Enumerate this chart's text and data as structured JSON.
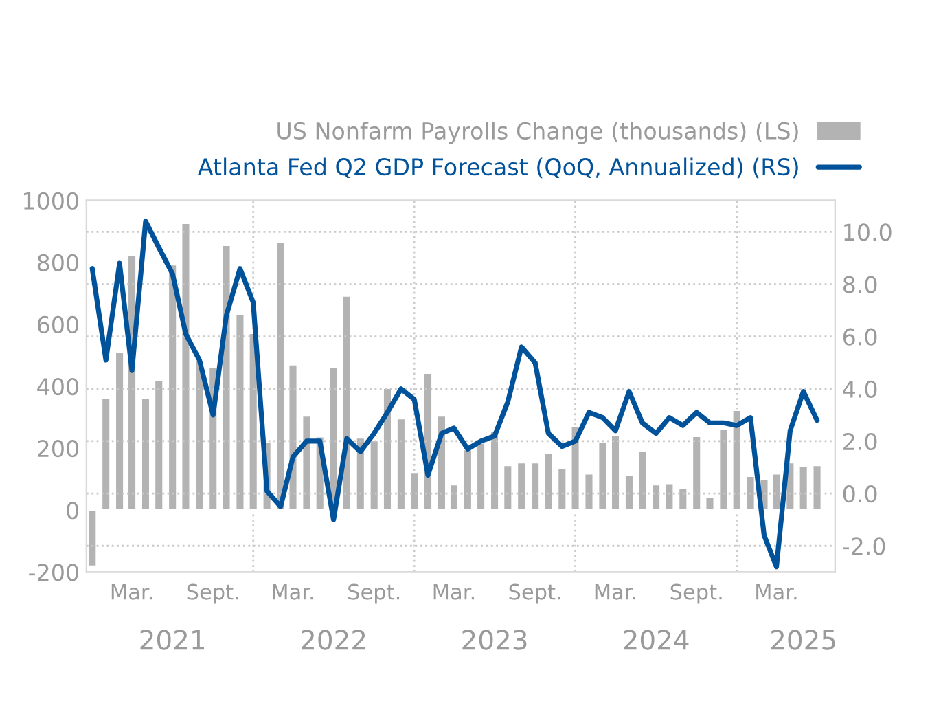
{
  "chart_data": {
    "type": "bar",
    "x": [
      "2020-12",
      "2021-01",
      "2021-02",
      "2021-03",
      "2021-04",
      "2021-05",
      "2021-06",
      "2021-07",
      "2021-08",
      "2021-09",
      "2021-10",
      "2021-11",
      "2021-12",
      "2022-01",
      "2022-02",
      "2022-03",
      "2022-04",
      "2022-05",
      "2022-06",
      "2022-07",
      "2022-08",
      "2022-09",
      "2022-10",
      "2022-11",
      "2022-12",
      "2023-01",
      "2023-02",
      "2023-03",
      "2023-04",
      "2023-05",
      "2023-06",
      "2023-07",
      "2023-08",
      "2023-09",
      "2023-10",
      "2023-11",
      "2023-12",
      "2024-01",
      "2024-02",
      "2024-03",
      "2024-04",
      "2024-05",
      "2024-06",
      "2024-07",
      "2024-08",
      "2024-09",
      "2024-10",
      "2024-11",
      "2024-12",
      "2025-01",
      "2025-02",
      "2025-03",
      "2025-04",
      "2025-05",
      "2025-06"
    ],
    "series": [
      {
        "name": "US Nonfarm Payrolls Change (thousands) (LS)",
        "color": "#b3b3b3",
        "values": [
          -182,
          363,
          510,
          825,
          363,
          421,
          793,
          927,
          484,
          461,
          856,
          634,
          572,
          221,
          865,
          470,
          305,
          238,
          461,
          692,
          234,
          225,
          394,
          296,
          123,
          443,
          305,
          83,
          196,
          218,
          256,
          145,
          154,
          154,
          185,
          136,
          270,
          118,
          221,
          243,
          114,
          190,
          83,
          87,
          70,
          239,
          43,
          261,
          323,
          110,
          101,
          118,
          154,
          141,
          145
        ]
      },
      {
        "name": "Atlanta Fed Q2 GDP Forecast (QoQ, Annualized) (RS)",
        "type": "line",
        "axis": "y2",
        "color": "#00529b",
        "values": [
          8.6,
          5.1,
          8.8,
          4.7,
          10.4,
          9.4,
          8.4,
          6.1,
          5.1,
          3.0,
          6.8,
          8.6,
          7.3,
          0.1,
          -0.5,
          1.4,
          2.0,
          2.0,
          -1.0,
          2.1,
          1.6,
          2.3,
          3.1,
          4.0,
          3.6,
          0.7,
          2.3,
          2.5,
          1.7,
          2.0,
          2.2,
          3.5,
          5.6,
          5.0,
          2.3,
          1.8,
          2.0,
          3.1,
          2.9,
          2.4,
          3.9,
          2.7,
          2.3,
          2.9,
          2.6,
          3.1,
          2.7,
          2.7,
          2.6,
          2.9,
          -1.6,
          -2.8,
          2.4,
          3.9,
          2.8
        ]
      }
    ],
    "xlim": [
      "2020-11-18",
      "2025-07-12"
    ],
    "xticks": [
      {
        "value": "2021-03",
        "label": "Mar."
      },
      {
        "value": "2021-09",
        "label": "Sept."
      },
      {
        "value": "2022-03",
        "label": "Mar."
      },
      {
        "value": "2022-09",
        "label": "Sept."
      },
      {
        "value": "2023-03",
        "label": "Mar."
      },
      {
        "value": "2023-09",
        "label": "Sept."
      },
      {
        "value": "2024-03",
        "label": "Mar."
      },
      {
        "value": "2024-09",
        "label": "Sept."
      },
      {
        "value": "2025-03",
        "label": "Mar."
      }
    ],
    "x2lim": [
      "2020-11-18",
      "2025-07-12"
    ],
    "x2ticks": [
      {
        "value": "2021-06",
        "label": "2021"
      },
      {
        "value": "2022-06",
        "label": "2022"
      },
      {
        "value": "2023-06",
        "label": "2023"
      },
      {
        "value": "2024-06",
        "label": "2024"
      },
      {
        "value": "2025-05",
        "label": "2025"
      }
    ],
    "ylim": [
      -200,
      1000
    ],
    "yticks": [
      -200,
      0,
      200,
      400,
      600,
      800,
      1000
    ],
    "y2lim": [
      -3,
      11.2
    ],
    "y2ticks": [
      {
        "value": -2,
        "label": "-2.0"
      },
      {
        "value": 0,
        "label": "0.0"
      },
      {
        "value": 2,
        "label": "2.0"
      },
      {
        "value": 4,
        "label": "4.0"
      },
      {
        "value": 6,
        "label": "6.0"
      },
      {
        "value": 8,
        "label": "8.0"
      },
      {
        "value": 10,
        "label": "10.0"
      }
    ],
    "ref_lines": [
      {
        "axis": "x",
        "value": "2021-12",
        "color": "#cccccc",
        "line_style": "dotted"
      },
      {
        "axis": "x",
        "value": "2022-12",
        "color": "#cccccc",
        "line_style": "dotted"
      },
      {
        "axis": "x",
        "value": "2023-12",
        "color": "#cccccc",
        "line_style": "dotted"
      },
      {
        "axis": "x",
        "value": "2024-12",
        "color": "#cccccc",
        "line_style": "dotted"
      }
    ],
    "grid": "y",
    "legend": "top right"
  }
}
